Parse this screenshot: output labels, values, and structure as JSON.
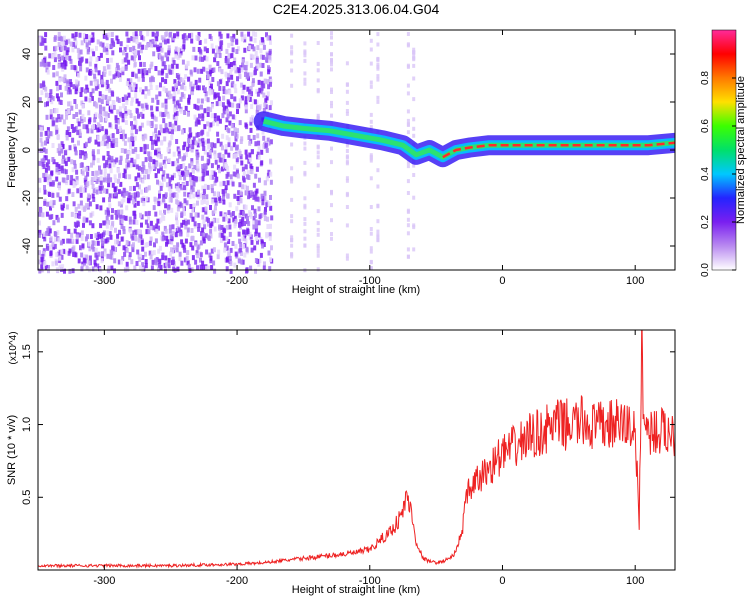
{
  "figure": {
    "title": "C2E4.2025.313.06.04.G04"
  },
  "chart_data": [
    {
      "type": "heatmap",
      "xlabel": "Height of straight line (km)",
      "ylabel": "Frequency (Hz)",
      "xlim": [
        -350,
        130
      ],
      "ylim": [
        -50,
        50
      ],
      "x_ticks": [
        -300,
        -200,
        -100,
        0,
        100
      ],
      "y_ticks": [
        -40,
        -20,
        0,
        20,
        40
      ],
      "grid": false,
      "colorbar": {
        "label": "Normalized spectral amplitude",
        "range": [
          0,
          1
        ],
        "ticks": [
          0.0,
          0.2,
          0.4,
          0.6,
          0.8
        ],
        "colors": [
          "#ffffff",
          "#b98af0",
          "#7a1ff0",
          "#2424ff",
          "#00c8ff",
          "#00e06a",
          "#3cff00",
          "#ffe000",
          "#ff7a00",
          "#ff0000",
          "#ff2a9a"
        ]
      },
      "signal_track": {
        "x": [
          -180,
          -165,
          -150,
          -130,
          -110,
          -90,
          -75,
          -65,
          -55,
          -45,
          -35,
          -25,
          -10,
          0,
          20,
          40,
          60,
          80,
          100,
          110,
          130
        ],
        "frequency": [
          12,
          10,
          9,
          8,
          6,
          4,
          2,
          -2,
          0,
          -3,
          0,
          1,
          2,
          2,
          2,
          2,
          2,
          2,
          2,
          2,
          3
        ]
      }
    },
    {
      "type": "line",
      "xlabel": "Height of straight line (km)",
      "ylabel": "SNR (10 * v/v)",
      "y_multiplier": "(x10^4)",
      "xlim": [
        -350,
        130
      ],
      "ylim": [
        0,
        1.65
      ],
      "x_ticks": [
        -300,
        -200,
        -100,
        0,
        100
      ],
      "y_ticks": [
        0.5,
        1.0,
        1.5
      ],
      "grid": false,
      "series": [
        {
          "color": "#ee2222",
          "x": [
            -350,
            -300,
            -250,
            -200,
            -180,
            -170,
            -160,
            -150,
            -140,
            -130,
            -120,
            -110,
            -100,
            -95,
            -90,
            -85,
            -80,
            -75,
            -72,
            -70,
            -68,
            -65,
            -60,
            -55,
            -50,
            -45,
            -40,
            -35,
            -30,
            -28,
            -25,
            -20,
            -15,
            -10,
            -5,
            0,
            10,
            20,
            30,
            40,
            50,
            60,
            70,
            80,
            90,
            100,
            103,
            105,
            107,
            110,
            120,
            130
          ],
          "y": [
            0.03,
            0.03,
            0.03,
            0.04,
            0.05,
            0.06,
            0.07,
            0.08,
            0.09,
            0.1,
            0.11,
            0.12,
            0.14,
            0.18,
            0.22,
            0.26,
            0.32,
            0.4,
            0.52,
            0.45,
            0.35,
            0.2,
            0.08,
            0.06,
            0.05,
            0.06,
            0.08,
            0.12,
            0.3,
            0.45,
            0.55,
            0.6,
            0.65,
            0.7,
            0.75,
            0.8,
            0.85,
            0.92,
            0.95,
            1.0,
            1.0,
            1.02,
            0.98,
            1.0,
            1.0,
            0.98,
            0.3,
            1.55,
            0.98,
            0.96,
            0.95,
            0.95
          ]
        }
      ]
    }
  ]
}
